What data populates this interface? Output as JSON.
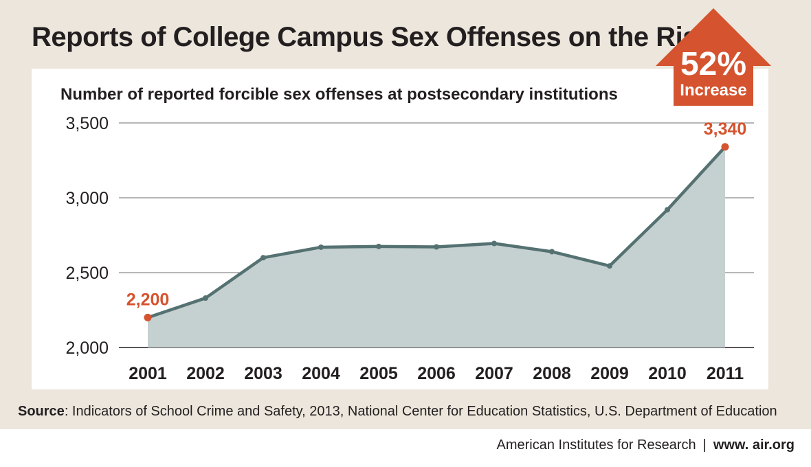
{
  "header": {
    "title": "Reports of College Campus Sex Offenses on the Rise"
  },
  "badge": {
    "percent": "52%",
    "label": "Increase",
    "color": "#d5532f"
  },
  "chart_data": {
    "type": "area",
    "title": "Number of reported forcible sex offenses at postsecondary institutions",
    "x": [
      "2001",
      "2002",
      "2003",
      "2004",
      "2005",
      "2006",
      "2007",
      "2008",
      "2009",
      "2010",
      "2011"
    ],
    "series": [
      {
        "values": [
          2200,
          2330,
          2600,
          2670,
          2675,
          2672,
          2695,
          2640,
          2545,
          2920,
          3340
        ]
      }
    ],
    "ylim": [
      2000,
      3500
    ],
    "yticks": [
      2000,
      2500,
      3000,
      3500
    ],
    "ytick_labels": [
      "2,000",
      "2,500",
      "3,000",
      "3,500"
    ],
    "annotations": [
      {
        "x": "2001",
        "value": 2200,
        "label": "2,200"
      },
      {
        "x": "2011",
        "value": 3340,
        "label": "3,340"
      }
    ],
    "grid": true,
    "line_color": "#557171",
    "fill_color": "#c5d0d0",
    "highlight_color": "#d5532f"
  },
  "source": {
    "label": "Source",
    "text": ": Indicators of School Crime and Safety, 2013, National Center for Education Statistics, U.S. Department of Education"
  },
  "footer": {
    "org": "American Institutes for Research",
    "separator": "|",
    "url": "www. air.org"
  }
}
